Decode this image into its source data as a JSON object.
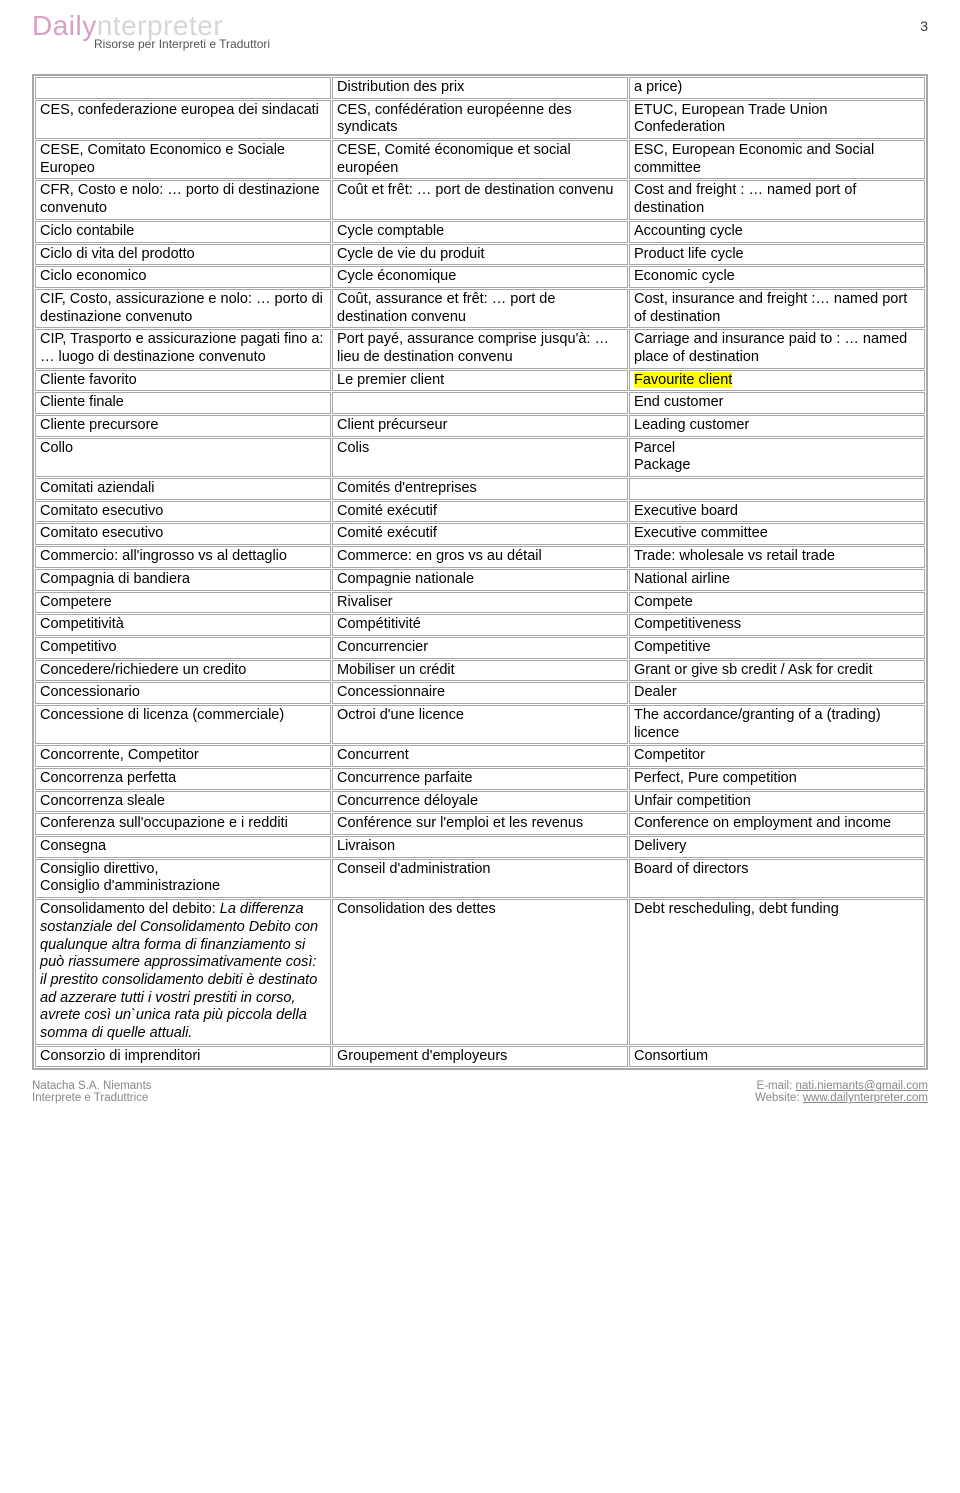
{
  "header": {
    "logo_a": "Daily",
    "logo_b": "nterpreter",
    "subtitle": "Risorse per Interpreti e Traduttori",
    "page_number": "3"
  },
  "rows": [
    {
      "it": "",
      "fr": "Distribution des prix",
      "en": "a price)"
    },
    {
      "it": "CES, confederazione europea dei sindacati",
      "fr": "CES, confédération européenne des syndicats",
      "en": "ETUC, European Trade Union Confederation"
    },
    {
      "it": "CESE, Comitato Economico e Sociale Europeo",
      "fr": "CESE, Comité économique et social européen",
      "en": "ESC, European Economic and Social committee"
    },
    {
      "it": "CFR, Costo e nolo: … porto di destinazione convenuto",
      "fr": "Coût et frêt: … port de destination convenu",
      "en": "Cost and freight : … named port of destination"
    },
    {
      "it": "Ciclo contabile",
      "fr": "Cycle comptable",
      "en": "Accounting cycle"
    },
    {
      "it": "Ciclo di vita del prodotto",
      "fr": "Cycle de vie du produit",
      "en": "Product life cycle"
    },
    {
      "it": "Ciclo economico",
      "fr": "Cycle économique",
      "en": "Economic cycle"
    },
    {
      "it": "CIF, Costo, assicurazione e nolo: … porto di destinazione convenuto",
      "fr": "Coût, assurance et frêt: … port de destination convenu",
      "en": "Cost, insurance and freight :… named port of destination"
    },
    {
      "it": "CIP, Trasporto e assicurazione pagati fino a: … luogo di destinazione convenuto",
      "fr": "Port payé, assurance comprise jusqu'à: … lieu de destination convenu",
      "en": "Carriage and insurance paid to : … named place of destination"
    },
    {
      "it": "Cliente favorito",
      "fr": "Le premier client",
      "en": "Favourite client",
      "en_highlight": true
    },
    {
      "it": "Cliente finale",
      "fr": "",
      "en": "End customer"
    },
    {
      "it": "Cliente precursore",
      "fr": "Client précurseur",
      "en": "Leading customer"
    },
    {
      "it": "Collo",
      "fr": "Colis",
      "en": "Parcel\nPackage"
    },
    {
      "it": "Comitati aziendali",
      "fr": "Comités d'entreprises",
      "en": ""
    },
    {
      "it": "Comitato esecutivo",
      "fr": "Comité exécutif",
      "en": "Executive board"
    },
    {
      "it": "Comitato esecutivo",
      "fr": "Comité exécutif",
      "en": "Executive committee"
    },
    {
      "it": "Commercio: all'ingrosso vs al dettaglio",
      "fr": "Commerce: en gros vs au détail",
      "en": "Trade: wholesale vs retail trade"
    },
    {
      "it": "Compagnia di bandiera",
      "fr": "Compagnie nationale",
      "en": "National airline"
    },
    {
      "it": "Competere",
      "fr": "Rivaliser",
      "en": "Compete"
    },
    {
      "it": "Competitività",
      "fr": "Compétitivité",
      "en": "Competitiveness"
    },
    {
      "it": "Competitivo",
      "fr": "Concurrencier",
      "en": "Competitive"
    },
    {
      "it": "Concedere/richiedere un credito",
      "fr": "Mobiliser un crédit",
      "en": "Grant or give sb credit / Ask for credit"
    },
    {
      "it": "Concessionario",
      "fr": "Concessionnaire",
      "en": "Dealer"
    },
    {
      "it": "Concessione di licenza (commerciale)",
      "fr": "Octroi d'une licence",
      "en": "The accordance/granting of a (trading) licence"
    },
    {
      "it": "Concorrente, Competitor",
      "fr": "Concurrent",
      "en": "Competitor"
    },
    {
      "it": "Concorrenza perfetta",
      "fr": "Concurrence parfaite",
      "en": "Perfect, Pure competition"
    },
    {
      "it": "Concorrenza sleale",
      "fr": "Concurrence déloyale",
      "en": "Unfair competition"
    },
    {
      "it": "Conferenza sull'occupazione e i redditi",
      "fr": "Conférence sur l'emploi et les revenus",
      "en": "Conference on employment and income"
    },
    {
      "it": "Consegna",
      "fr": "Livraison",
      "en": "Delivery"
    },
    {
      "it": "Consiglio direttivo,\nConsiglio d'amministrazione",
      "fr": "Conseil d'administration",
      "en": "Board of directors"
    },
    {
      "it": "Consolidamento del debito: ",
      "it_ital": "La differenza sostanziale del Consolidamento Debito con qualunque altra forma di finanziamento si può riassumere approssimativamente così:  il prestito consolidamento debiti è destinato ad azzerare tutti i vostri prestiti in corso, avrete così un`unica rata più piccola della somma di quelle attuali.",
      "fr": "Consolidation des dettes",
      "en": "Debt rescheduling, debt funding"
    },
    {
      "it": "Consorzio di imprenditori",
      "fr": "Groupement d'employeurs",
      "en": "Consortium"
    }
  ],
  "footer": {
    "name": "Natacha S.A. Niemants",
    "role": "Interprete e Traduttrice",
    "email_label": "E-mail: ",
    "email": "nati.niemants@gmail.com",
    "website_label": "Website: ",
    "website": "www.dailynterpreter.com"
  }
}
